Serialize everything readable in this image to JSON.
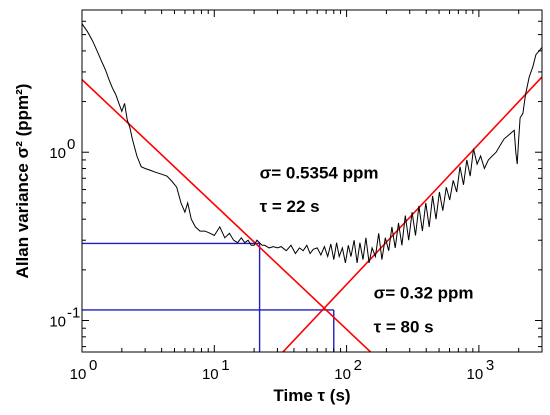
{
  "chart_data": {
    "type": "line",
    "xlabel": "Time τ (s)",
    "ylabel": "Allan variance σ² (ppm²)",
    "xscale": "log",
    "yscale": "log",
    "xlim": [
      1,
      3000
    ],
    "ylim": [
      0.065,
      7
    ],
    "x_ticks": [
      {
        "value": 1,
        "base": "10",
        "exp": "0"
      },
      {
        "value": 10,
        "base": "10",
        "exp": "1"
      },
      {
        "value": 100,
        "base": "10",
        "exp": "2"
      },
      {
        "value": 1000,
        "base": "10",
        "exp": "3"
      }
    ],
    "y_ticks": [
      {
        "value": 0.1,
        "base": "10",
        "exp": "-1"
      },
      {
        "value": 1,
        "base": "10",
        "exp": "0"
      }
    ],
    "grid": false,
    "colors": {
      "data": "#000000",
      "fit": "#ff0000",
      "guide": "#1f1fbf"
    },
    "series": [
      {
        "points": [
          [
            1,
            5.8
          ],
          [
            1.1,
            5.2
          ],
          [
            1.2,
            4.6
          ],
          [
            1.3,
            4.0
          ],
          [
            1.4,
            3.5
          ],
          [
            1.5,
            3.1
          ],
          [
            1.6,
            2.7
          ],
          [
            1.7,
            2.4
          ],
          [
            1.8,
            2.2
          ],
          [
            1.9,
            1.95
          ],
          [
            2.0,
            1.75
          ],
          [
            2.1,
            1.95
          ],
          [
            2.2,
            1.55
          ],
          [
            2.3,
            1.4
          ],
          [
            2.4,
            1.2
          ],
          [
            2.6,
            0.95
          ],
          [
            2.8,
            0.82
          ],
          [
            3.0,
            0.8
          ],
          [
            3.3,
            0.78
          ],
          [
            3.6,
            0.76
          ],
          [
            4.0,
            0.74
          ],
          [
            4.4,
            0.72
          ],
          [
            4.8,
            0.67
          ],
          [
            5.2,
            0.62
          ],
          [
            5.6,
            0.5
          ],
          [
            6.0,
            0.44
          ],
          [
            6.3,
            0.5
          ],
          [
            6.7,
            0.4
          ],
          [
            7.2,
            0.36
          ],
          [
            7.8,
            0.34
          ],
          [
            8.5,
            0.34
          ],
          [
            9.3,
            0.33
          ],
          [
            10,
            0.32
          ],
          [
            11,
            0.36
          ],
          [
            12,
            0.31
          ],
          [
            13,
            0.33
          ],
          [
            14,
            0.3
          ],
          [
            15,
            0.29
          ],
          [
            16,
            0.31
          ],
          [
            17,
            0.29
          ],
          [
            18,
            0.3
          ],
          [
            19,
            0.28
          ],
          [
            20,
            0.28
          ],
          [
            21,
            0.3
          ],
          [
            22,
            0.29
          ],
          [
            23,
            0.28
          ],
          [
            24,
            0.28
          ],
          [
            26,
            0.27
          ],
          [
            28,
            0.275
          ],
          [
            30,
            0.27
          ],
          [
            32,
            0.275
          ],
          [
            35,
            0.26
          ],
          [
            38,
            0.28
          ],
          [
            41,
            0.25
          ],
          [
            44,
            0.27
          ],
          [
            47,
            0.26
          ],
          [
            50,
            0.28
          ],
          [
            53,
            0.25
          ],
          [
            56,
            0.265
          ],
          [
            60,
            0.27
          ],
          [
            64,
            0.245
          ],
          [
            68,
            0.275
          ],
          [
            72,
            0.24
          ],
          [
            76,
            0.285
          ],
          [
            80,
            0.23
          ],
          [
            84,
            0.29
          ],
          [
            88,
            0.24
          ],
          [
            93,
            0.27
          ],
          [
            98,
            0.22
          ],
          [
            103,
            0.28
          ],
          [
            108,
            0.24
          ],
          [
            114,
            0.3
          ],
          [
            120,
            0.22
          ],
          [
            126,
            0.29
          ],
          [
            133,
            0.23
          ],
          [
            140,
            0.31
          ],
          [
            148,
            0.22
          ],
          [
            156,
            0.27
          ],
          [
            165,
            0.24
          ],
          [
            175,
            0.33
          ],
          [
            185,
            0.23
          ],
          [
            196,
            0.31
          ],
          [
            208,
            0.26
          ],
          [
            220,
            0.36
          ],
          [
            233,
            0.27
          ],
          [
            247,
            0.38
          ],
          [
            262,
            0.28
          ],
          [
            278,
            0.42
          ],
          [
            295,
            0.3
          ],
          [
            313,
            0.44
          ],
          [
            332,
            0.32
          ],
          [
            352,
            0.48
          ],
          [
            374,
            0.34
          ],
          [
            397,
            0.5
          ],
          [
            421,
            0.36
          ],
          [
            447,
            0.55
          ],
          [
            474,
            0.4
          ],
          [
            503,
            0.58
          ],
          [
            534,
            0.45
          ],
          [
            567,
            0.62
          ],
          [
            602,
            0.52
          ],
          [
            640,
            0.68
          ],
          [
            680,
            0.58
          ],
          [
            720,
            0.82
          ],
          [
            765,
            0.64
          ],
          [
            810,
            0.9
          ],
          [
            860,
            0.72
          ],
          [
            910,
            1.05
          ],
          [
            970,
            0.85
          ],
          [
            1030,
            0.95
          ],
          [
            1100,
            0.8
          ],
          [
            1180,
            0.9
          ],
          [
            1260,
            0.95
          ],
          [
            1350,
            1.0
          ],
          [
            1450,
            1.1
          ],
          [
            1550,
            1.2
          ],
          [
            1650,
            1.25
          ],
          [
            1750,
            1.3
          ],
          [
            1850,
            1.35
          ],
          [
            1900,
            1.0
          ],
          [
            1950,
            0.85
          ],
          [
            2000,
            1.2
          ],
          [
            2050,
            1.6
          ],
          [
            2150,
            1.7
          ],
          [
            2250,
            2.2
          ],
          [
            2400,
            2.8
          ],
          [
            2550,
            3.2
          ],
          [
            2700,
            3.8
          ],
          [
            2850,
            4.0
          ],
          [
            3000,
            4.2
          ]
        ]
      }
    ],
    "fit_lines": [
      {
        "points": [
          [
            1,
            2.7
          ],
          [
            200,
            0.053
          ]
        ]
      },
      {
        "points": [
          [
            30,
            0.06
          ],
          [
            3000,
            2.8
          ]
        ]
      }
    ],
    "guides": [
      {
        "label": "σ= 0.5354 ppm / τ = 22 s",
        "x": 22,
        "y": 0.287
      },
      {
        "label": "σ= 0.32 ppm / τ = 80 s",
        "x": 80,
        "y": 0.1155
      }
    ],
    "annotations": [
      {
        "id": "sigma1",
        "text": "σ= 0.5354 ppm",
        "x": 22,
        "y": 0.7
      },
      {
        "id": "tau1",
        "text": "τ = 22 s",
        "x": 22,
        "y": 0.44
      },
      {
        "id": "sigma2",
        "text": "σ= 0.32 ppm",
        "x": 160,
        "y": 0.135
      },
      {
        "id": "tau2",
        "text": "τ = 80 s",
        "x": 160,
        "y": 0.085
      }
    ]
  }
}
